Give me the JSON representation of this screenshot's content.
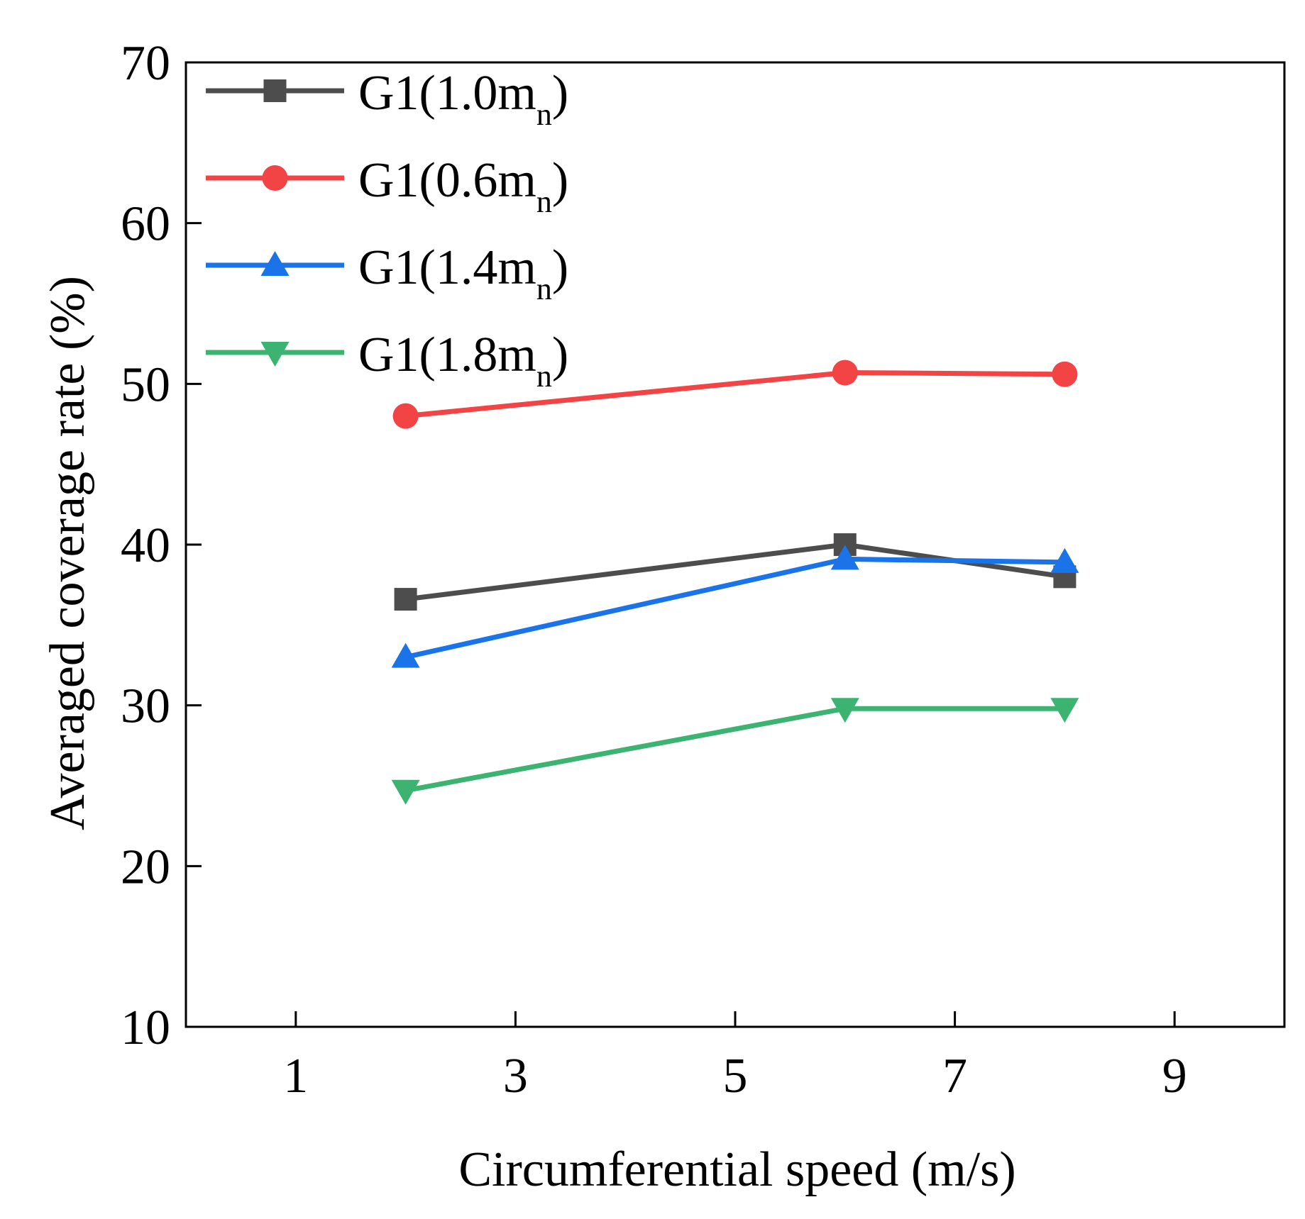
{
  "chart_data": {
    "type": "line",
    "title": "",
    "xlabel": "Circumferential speed (m/s)",
    "ylabel": "Averaged coverage rate (%)",
    "xlim": [
      0,
      10
    ],
    "ylim": [
      10,
      70
    ],
    "xticks": [
      1,
      3,
      5,
      7,
      9
    ],
    "yticks": [
      10,
      20,
      30,
      40,
      50,
      60,
      70
    ],
    "legend_position": "top-left",
    "series": [
      {
        "name": "G1(1.0mn)",
        "label_main": "G1(1.0m",
        "label_sub": "n",
        "label_close": ")",
        "color": "#4d4d4d",
        "marker": "square",
        "x": [
          2,
          6,
          8
        ],
        "y": [
          36.6,
          40.0,
          38.0
        ]
      },
      {
        "name": "G1(0.6mn)",
        "label_main": "G1(0.6m",
        "label_sub": "n",
        "label_close": ")",
        "color": "#f24444",
        "marker": "circle",
        "x": [
          2,
          6,
          8
        ],
        "y": [
          48.0,
          50.7,
          50.6
        ]
      },
      {
        "name": "G1(1.4mn)",
        "label_main": "G1(1.4m",
        "label_sub": "n",
        "label_close": ")",
        "color": "#1a73e8",
        "marker": "triangle-up",
        "x": [
          2,
          6,
          8
        ],
        "y": [
          33.0,
          39.1,
          38.9
        ]
      },
      {
        "name": "G1(1.8mn)",
        "label_main": "G1(1.8m",
        "label_sub": "n",
        "label_close": ")",
        "color": "#3cb371",
        "marker": "triangle-down",
        "x": [
          2,
          6,
          8
        ],
        "y": [
          24.7,
          29.8,
          29.8
        ]
      }
    ]
  }
}
